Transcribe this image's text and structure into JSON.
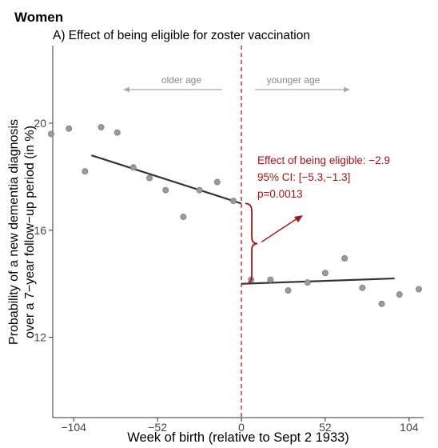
{
  "figure": {
    "group_label": "Women",
    "panel_title": "A) Effect of being eligible for zoster vaccination"
  },
  "colors": {
    "points": "#9a9a9a",
    "fit_line": "#333333",
    "cutoff": "#c0272d",
    "annotation": "#a31515",
    "age_arrows": "#aaaaaa",
    "axis": "#333333"
  },
  "chart_data": {
    "type": "scatter",
    "xlabel": "Week of birth (relative to Sept 2 1933)",
    "ylabel_lines": [
      "Probability of a new dementia diagnosis",
      "over a 7−year follow−up period (in %)"
    ],
    "xlim": [
      -117,
      113
    ],
    "ylim": [
      9.0,
      22.9
    ],
    "x_ticks": [
      -104,
      -52,
      0,
      52,
      104
    ],
    "x_tick_labels": [
      "−104",
      "−52",
      "0",
      "52",
      "104"
    ],
    "y_ticks": [
      12,
      16,
      20
    ],
    "y_tick_labels": [
      "12",
      "16",
      "20"
    ],
    "grid": false,
    "cutoff_x": 0,
    "points": [
      {
        "x": -118,
        "y": 19.6
      },
      {
        "x": -107,
        "y": 19.8
      },
      {
        "x": -97,
        "y": 18.2
      },
      {
        "x": -87,
        "y": 19.85
      },
      {
        "x": -77,
        "y": 19.65
      },
      {
        "x": -67,
        "y": 18.35
      },
      {
        "x": -57,
        "y": 17.95
      },
      {
        "x": -47,
        "y": 17.5
      },
      {
        "x": -36,
        "y": 16.5
      },
      {
        "x": -26,
        "y": 17.5
      },
      {
        "x": -15,
        "y": 17.8
      },
      {
        "x": -5,
        "y": 17.1
      },
      {
        "x": 6,
        "y": 14.15
      },
      {
        "x": 18,
        "y": 14.15
      },
      {
        "x": 29,
        "y": 13.75
      },
      {
        "x": 41,
        "y": 14.05
      },
      {
        "x": 52,
        "y": 14.4
      },
      {
        "x": 64,
        "y": 14.95
      },
      {
        "x": 75,
        "y": 13.85
      },
      {
        "x": 87,
        "y": 13.25
      },
      {
        "x": 98,
        "y": 13.6
      },
      {
        "x": 110,
        "y": 13.8
      }
    ],
    "fit_lines": [
      {
        "x": [
          -93,
          0
        ],
        "y": [
          18.8,
          17.0
        ]
      },
      {
        "x": [
          0,
          95
        ],
        "y": [
          14.0,
          14.2
        ]
      }
    ],
    "direction_labels": {
      "left": "older age",
      "right": "younger age"
    },
    "annotation": {
      "effect": "Effect of being eligible: −2.9",
      "ci": "95% CI: [−5.3,−1.3]",
      "p": "p=0.0013"
    }
  }
}
